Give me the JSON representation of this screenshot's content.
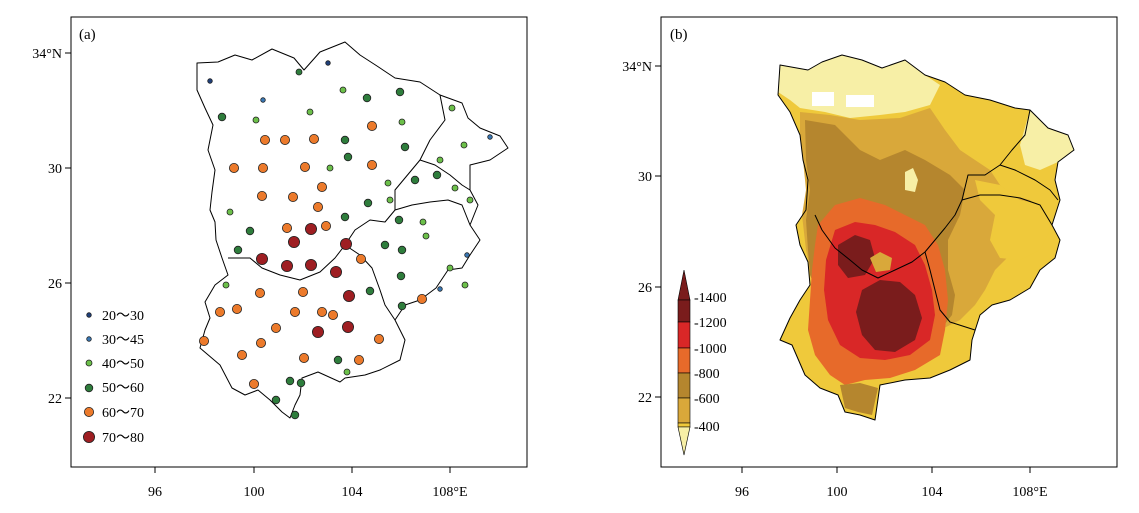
{
  "panels": [
    {
      "label": "(a)",
      "x_ticks": [
        "96",
        "100",
        "104",
        "108°E"
      ],
      "y_ticks": [
        "34°N",
        "30",
        "26",
        "22"
      ],
      "legend": [
        {
          "label": "20～30",
          "color": "#1f3f7a"
        },
        {
          "label": "30～45",
          "color": "#3a78b5"
        },
        {
          "label": "40～50",
          "color": "#6cc04a"
        },
        {
          "label": "50～60",
          "color": "#2e7d3c"
        },
        {
          "label": "60～70",
          "color": "#ec7a2b"
        },
        {
          "label": "70～80",
          "color": "#9e1e22"
        }
      ]
    },
    {
      "label": "(b)",
      "x_ticks": [
        "96",
        "100",
        "104",
        "108°E"
      ],
      "y_ticks": [
        "34°N",
        "30",
        "26",
        "22"
      ],
      "colorbar": [
        {
          "label": "-1400",
          "color": "#7a1c1c"
        },
        {
          "label": "-1200",
          "color": "#d92727"
        },
        {
          "label": "-1000",
          "color": "#e76a2a"
        },
        {
          "label": "-800",
          "color": "#b5862e"
        },
        {
          "label": "-600",
          "color": "#d9a83a"
        },
        {
          "label": "-400",
          "color": "#efc93b"
        }
      ],
      "colorbar_extend_color": "#f7efa6"
    }
  ]
}
